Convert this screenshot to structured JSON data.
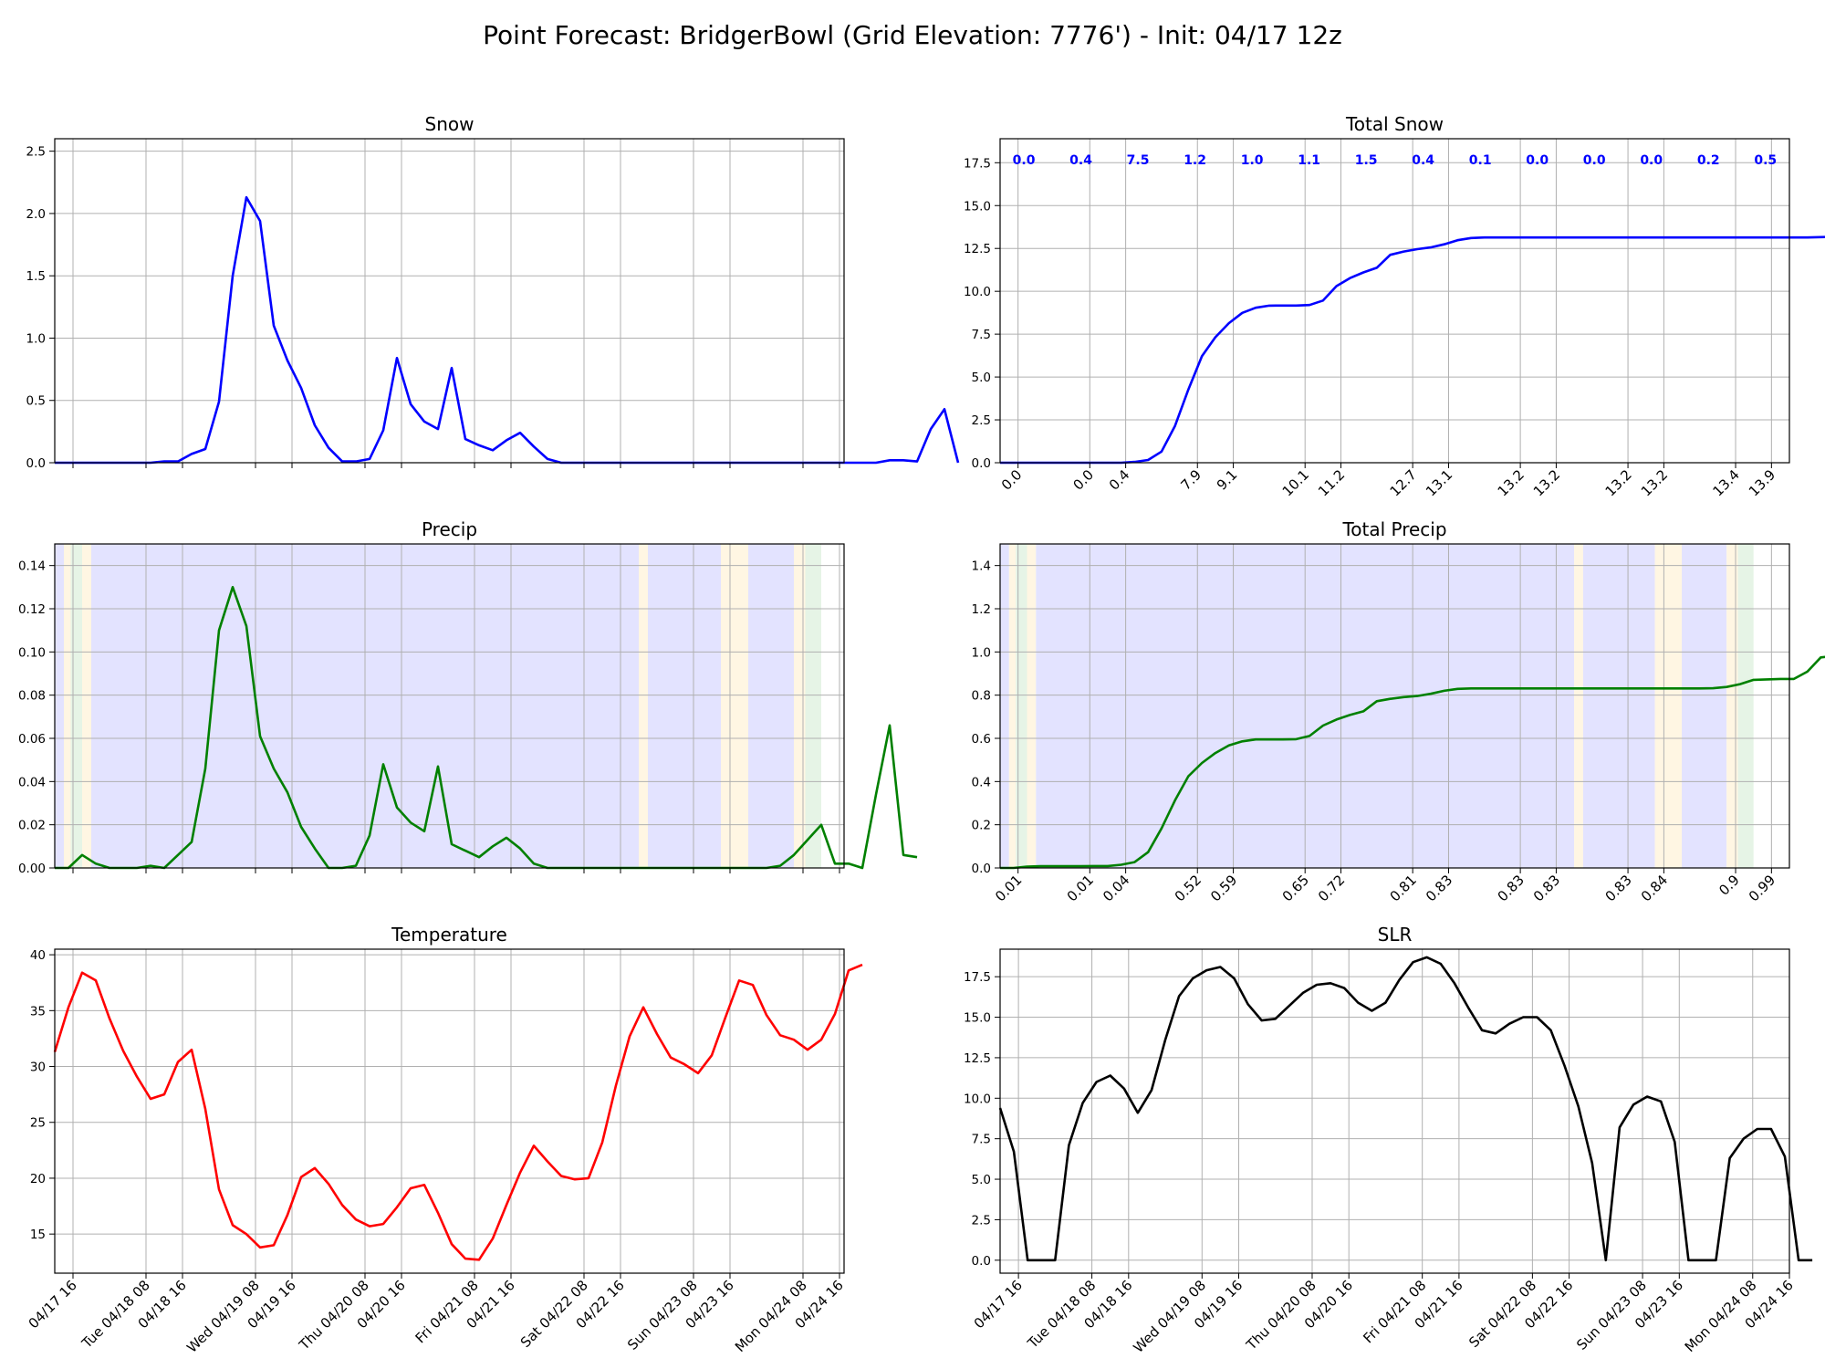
{
  "title": "Point Forecast: BridgerBowl (Grid Elevation: 7776') - Init: 04/17 12z",
  "date_ticks": [
    "04/17 16",
    "Tue 04/18 08",
    "04/18 16",
    "Wed 04/19 08",
    "04/19 16",
    "Thu 04/20 08",
    "04/20 16",
    "Fri 04/21 08",
    "04/21 16",
    "Sat 04/22 08",
    "04/22 16",
    "Sun 04/23 08",
    "04/23 16",
    "Mon 04/24 08",
    "04/24 16"
  ],
  "date_tick_hours": [
    4,
    20,
    28,
    44,
    52,
    68,
    76,
    92,
    100,
    116,
    124,
    140,
    148,
    164,
    172
  ],
  "colors": {
    "snow": "#0000ff",
    "precip": "#008000",
    "temp": "#ff0000",
    "slr": "#000000",
    "band_snow": "#e3e3ff",
    "band_rain": "#e6f4e6",
    "band_mix": "#fff6e3",
    "grid": "#b0b0b0"
  },
  "chart_data": [
    {
      "id": "snow",
      "type": "line",
      "title": "Snow",
      "ylim": [
        0,
        2.6
      ],
      "yticks": [
        "0.0",
        "0.5",
        "1.0",
        "1.5",
        "2.0",
        "2.5"
      ],
      "ytick_values": [
        0,
        0.5,
        1.0,
        1.5,
        2.0,
        2.5
      ],
      "color": "#0000ff",
      "values": [
        0,
        0,
        0,
        0,
        0,
        0,
        0,
        0,
        0.01,
        0.01,
        0.07,
        0.11,
        0.49,
        1.5,
        2.13,
        1.94,
        1.1,
        0.82,
        0.6,
        0.3,
        0.12,
        0.01,
        0.01,
        0.03,
        0.26,
        0.84,
        0.47,
        0.33,
        0.27,
        0.76,
        0.19,
        0.14,
        0.1,
        0.18,
        0.24,
        0.13,
        0.03,
        0,
        0,
        0,
        0,
        0,
        0,
        0,
        0,
        0,
        0,
        0,
        0,
        0,
        0,
        0,
        0,
        0,
        0,
        0,
        0,
        0,
        0,
        0,
        0,
        0.02,
        0.02,
        0.01,
        0.27,
        0.43,
        0
      ]
    },
    {
      "id": "total_snow",
      "type": "line",
      "title": "Total Snow",
      "ylim": [
        0,
        18.9
      ],
      "yticks": [
        "0.0",
        "2.5",
        "5.0",
        "7.5",
        "10.0",
        "12.5",
        "15.0",
        "17.5"
      ],
      "ytick_values": [
        0,
        2.5,
        5.0,
        7.5,
        10.0,
        12.5,
        15.0,
        17.5
      ],
      "color": "#0000ff",
      "values": [
        0,
        0,
        0,
        0,
        0,
        0,
        0,
        0,
        0,
        0,
        0.05,
        0.16,
        0.65,
        2.15,
        4.28,
        6.22,
        7.32,
        8.14,
        8.74,
        9.04,
        9.16,
        9.17,
        9.17,
        9.2,
        9.46,
        10.3,
        10.77,
        11.1,
        11.37,
        12.13,
        12.32,
        12.46,
        12.56,
        12.74,
        12.98,
        13.11,
        13.14,
        13.14,
        13.14,
        13.14,
        13.14,
        13.14,
        13.14,
        13.14,
        13.14,
        13.14,
        13.14,
        13.14,
        13.14,
        13.14,
        13.14,
        13.14,
        13.14,
        13.14,
        13.14,
        13.14,
        13.14,
        13.14,
        13.14,
        13.14,
        13.14,
        13.16,
        13.18,
        13.19,
        13.46,
        13.89,
        13.89,
        13.89
      ],
      "period_totals": [
        "0.0",
        "0.4",
        "7.5",
        "1.2",
        "1.0",
        "1.1",
        "1.5",
        "0.4",
        "0.1",
        "0.0",
        "0.0",
        "0.0",
        "0.2",
        "0.5"
      ],
      "period_hours": [
        5,
        17,
        29,
        41,
        53,
        65,
        77,
        89,
        101,
        113,
        125,
        137,
        149,
        161
      ],
      "cum_labels": [
        "0.0",
        "0.0",
        "0.4",
        "7.9",
        "9.1",
        "10.1",
        "11.2",
        "12.7",
        "13.1",
        "13.2",
        "13.2",
        "13.2",
        "13.2",
        "13.4",
        "13.9"
      ]
    },
    {
      "id": "precip",
      "type": "line",
      "title": "Precip",
      "ylim": [
        0,
        0.15
      ],
      "yticks": [
        "0.00",
        "0.02",
        "0.04",
        "0.06",
        "0.08",
        "0.10",
        "0.12",
        "0.14"
      ],
      "ytick_values": [
        0,
        0.02,
        0.04,
        0.06,
        0.08,
        0.1,
        0.12,
        0.14
      ],
      "color": "#008000",
      "values": [
        0,
        0,
        0.006,
        0.002,
        0,
        0,
        0,
        0.001,
        0,
        0.006,
        0.012,
        0.046,
        0.11,
        0.13,
        0.112,
        0.061,
        0.046,
        0.035,
        0.019,
        0.009,
        0,
        0,
        0.001,
        0.015,
        0.048,
        0.028,
        0.021,
        0.017,
        0.047,
        0.011,
        0.008,
        0.005,
        0.01,
        0.014,
        0.009,
        0.002,
        0,
        0,
        0,
        0,
        0,
        0,
        0,
        0,
        0,
        0,
        0,
        0,
        0,
        0,
        0,
        0,
        0,
        0.001,
        0.006,
        0.013,
        0.02,
        0.002,
        0.002,
        0,
        0.034,
        0.066,
        0.006,
        0.005
      ],
      "bands": [
        [
          0,
          2,
          "band_snow"
        ],
        [
          2,
          3.5,
          "band_mix"
        ],
        [
          3.5,
          6,
          "band_rain"
        ],
        [
          6,
          8,
          "band_mix"
        ],
        [
          8,
          128,
          "band_snow"
        ],
        [
          128,
          130,
          "band_mix"
        ],
        [
          130,
          146,
          "band_snow"
        ],
        [
          146,
          152,
          "band_mix"
        ],
        [
          152,
          162,
          "band_snow"
        ],
        [
          162,
          164.5,
          "band_mix"
        ],
        [
          164.5,
          168,
          "band_rain"
        ]
      ]
    },
    {
      "id": "total_precip",
      "type": "line",
      "title": "Total Precip",
      "ylim": [
        0,
        1.5
      ],
      "yticks": [
        "0.0",
        "0.2",
        "0.4",
        "0.6",
        "0.8",
        "1.0",
        "1.2",
        "1.4"
      ],
      "ytick_values": [
        0,
        0.2,
        0.4,
        0.6,
        0.8,
        1.0,
        1.2,
        1.4
      ],
      "color": "#008000",
      "values": [
        0,
        0,
        0.006,
        0.008,
        0.008,
        0.008,
        0.008,
        0.009,
        0.009,
        0.015,
        0.027,
        0.073,
        0.183,
        0.313,
        0.425,
        0.486,
        0.532,
        0.567,
        0.586,
        0.595,
        0.595,
        0.595,
        0.596,
        0.611,
        0.659,
        0.687,
        0.708,
        0.725,
        0.772,
        0.783,
        0.791,
        0.796,
        0.806,
        0.82,
        0.829,
        0.831,
        0.831,
        0.831,
        0.831,
        0.831,
        0.831,
        0.831,
        0.831,
        0.831,
        0.831,
        0.831,
        0.831,
        0.831,
        0.831,
        0.831,
        0.831,
        0.831,
        0.831,
        0.832,
        0.838,
        0.851,
        0.871,
        0.873,
        0.875,
        0.875,
        0.909,
        0.975,
        0.981,
        0.986
      ],
      "bands": [
        [
          0,
          2,
          "band_snow"
        ],
        [
          2,
          3.5,
          "band_mix"
        ],
        [
          3.5,
          6,
          "band_rain"
        ],
        [
          6,
          8,
          "band_mix"
        ],
        [
          8,
          128,
          "band_snow"
        ],
        [
          128,
          130,
          "band_mix"
        ],
        [
          130,
          146,
          "band_snow"
        ],
        [
          146,
          152,
          "band_mix"
        ],
        [
          152,
          162,
          "band_snow"
        ],
        [
          162,
          164.5,
          "band_mix"
        ],
        [
          164.5,
          168,
          "band_rain"
        ]
      ],
      "cum_labels": [
        "0.01",
        "0.01",
        "0.04",
        "0.52",
        "0.59",
        "0.65",
        "0.72",
        "0.81",
        "0.83",
        "0.83",
        "0.83",
        "0.83",
        "0.84",
        "0.9",
        "0.99"
      ]
    },
    {
      "id": "temperature",
      "type": "line",
      "title": "Temperature",
      "ylim": [
        11.5,
        40.5
      ],
      "yticks": [
        "15",
        "20",
        "25",
        "30",
        "35",
        "40"
      ],
      "ytick_values": [
        15,
        20,
        25,
        30,
        35,
        40
      ],
      "color": "#ff0000",
      "values": [
        31.3,
        35.3,
        38.4,
        37.7,
        34.3,
        31.4,
        29.1,
        27.1,
        27.5,
        30.4,
        31.5,
        26.2,
        19,
        15.8,
        15,
        13.8,
        14,
        16.7,
        20.1,
        20.9,
        19.5,
        17.6,
        16.3,
        15.7,
        15.9,
        17.4,
        19.1,
        19.4,
        16.9,
        14.1,
        12.8,
        12.7,
        14.6,
        17.6,
        20.5,
        22.9,
        21.5,
        20.2,
        19.9,
        20,
        23.2,
        28.3,
        32.7,
        35.3,
        32.9,
        30.8,
        30.2,
        29.4,
        31,
        34.4,
        37.7,
        37.3,
        34.6,
        32.8,
        32.4,
        31.5,
        32.4,
        34.7,
        38.6,
        39.1
      ]
    },
    {
      "id": "slr",
      "type": "line",
      "title": "SLR",
      "ylim": [
        -0.8,
        19.2
      ],
      "yticks": [
        "0.0",
        "2.5",
        "5.0",
        "7.5",
        "10.0",
        "12.5",
        "15.0",
        "17.5"
      ],
      "ytick_values": [
        0,
        2.5,
        5.0,
        7.5,
        10.0,
        12.5,
        15.0,
        17.5
      ],
      "color": "#000000",
      "values": [
        9.4,
        6.7,
        0,
        0,
        0,
        7.1,
        9.7,
        11,
        11.4,
        10.6,
        9.1,
        10.5,
        13.6,
        16.3,
        17.4,
        17.9,
        18.1,
        17.4,
        15.8,
        14.8,
        14.9,
        15.7,
        16.5,
        17,
        17.1,
        16.8,
        15.9,
        15.4,
        15.9,
        17.3,
        18.4,
        18.7,
        18.3,
        17.1,
        15.6,
        14.2,
        14,
        14.6,
        15,
        15,
        14.2,
        12,
        9.5,
        6,
        0,
        8.2,
        9.6,
        10.1,
        9.8,
        7.3,
        0,
        0,
        0,
        6.3,
        7.5,
        8.1,
        8.1,
        6.4,
        0,
        0
      ]
    }
  ]
}
